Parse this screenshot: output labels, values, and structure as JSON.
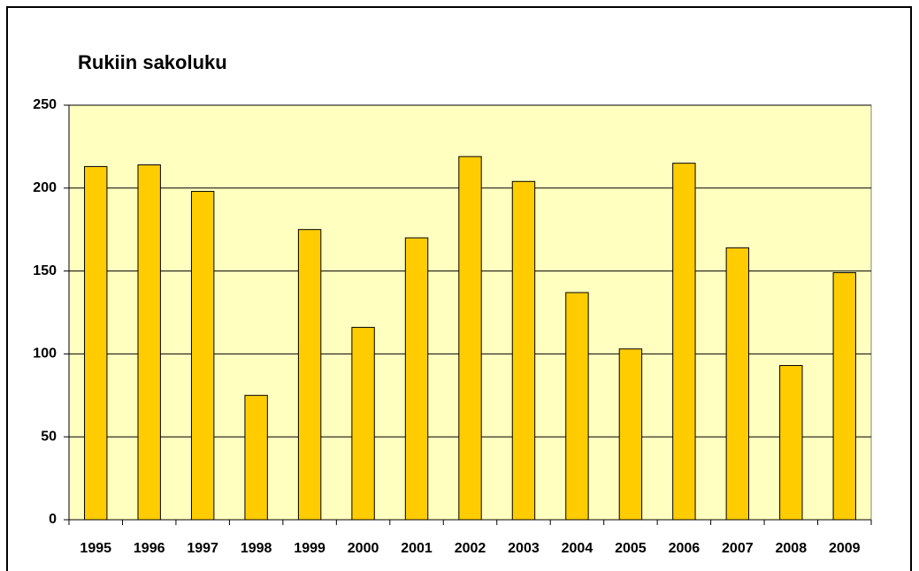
{
  "chart_data": {
    "type": "bar",
    "title": "Rukiin sakoluku",
    "categories": [
      "1995",
      "1996",
      "1997",
      "1998",
      "1999",
      "2000",
      "2001",
      "2002",
      "2003",
      "2004",
      "2005",
      "2006",
      "2007",
      "2008",
      "2009"
    ],
    "values": [
      213,
      214,
      198,
      75,
      175,
      116,
      170,
      219,
      204,
      137,
      103,
      215,
      164,
      93,
      149
    ],
    "color": "#ffcc00",
    "ylim": [
      0,
      250
    ],
    "yticks": [
      0,
      50,
      100,
      150,
      200,
      250
    ],
    "grid": true
  }
}
